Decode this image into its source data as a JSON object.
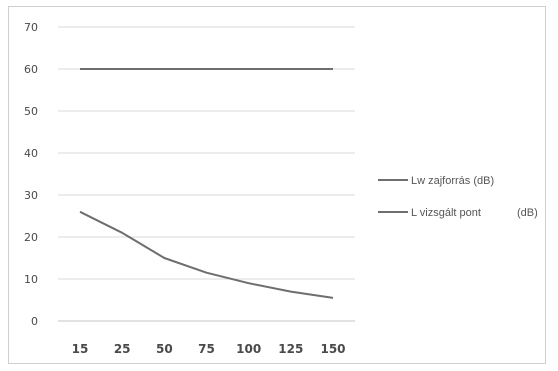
{
  "chart_data": {
    "type": "line",
    "x": [
      "15",
      "25",
      "50",
      "75",
      "100",
      "125",
      "150"
    ],
    "series": [
      {
        "name": "Lw zajforrás (dB)",
        "values": [
          60,
          60,
          60,
          60,
          60,
          60,
          60
        ],
        "color": "#6e6e6e"
      },
      {
        "name": "L vizsgált pont",
        "unit": "(dB)",
        "values": [
          26,
          21,
          15,
          11.5,
          9,
          7,
          5.5
        ],
        "color": "#6e6e6e"
      }
    ],
    "y_ticks": [
      "0",
      "10",
      "20",
      "30",
      "40",
      "50",
      "60",
      "70"
    ],
    "ylim": [
      0,
      70
    ],
    "grid": true,
    "legend_position": "right"
  }
}
